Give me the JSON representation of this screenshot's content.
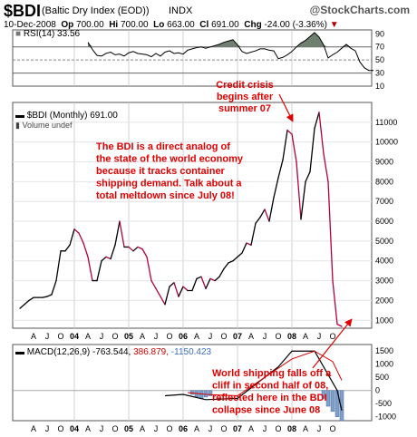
{
  "header": {
    "symbol": "$BDI",
    "name": "(Baltic Dry Index (EOD))",
    "exchange": "INDX",
    "copyright": "@StockCharts.com",
    "date": "10-Dec-2008",
    "open_label": "Op",
    "open": "700.00",
    "high_label": "Hi",
    "high": "700.00",
    "low_label": "Lo",
    "low": "663.00",
    "close_label": "Cl",
    "close": "691.00",
    "change_label": "Chg",
    "change": "-24.00 (-3.36%)",
    "change_marker": "▼"
  },
  "rsi_panel": {
    "legend": "RSI(14) 33.56",
    "ticks": [
      "90",
      "70",
      "50",
      "30",
      "10"
    ]
  },
  "price_panel": {
    "legend": "$BDI (Monthly) 691.00",
    "volume_legend": "Volume undef",
    "ticks": [
      "11000",
      "10000",
      "9000",
      "8000",
      "7000",
      "6000",
      "5000",
      "4000",
      "3000",
      "2000",
      "1000"
    ]
  },
  "macd_panel": {
    "legend_prefix": "MACD(12,26,9)",
    "macd_value": "-763.544,",
    "signal_value": "386.879,",
    "hist_value": "-1150.423",
    "ticks": [
      "1500",
      "1000",
      "500",
      "0",
      "-500",
      "-1000"
    ]
  },
  "x_axis": {
    "labels": [
      "A",
      "J",
      "O",
      "04",
      "A",
      "J",
      "O",
      "05",
      "A",
      "J",
      "O",
      "06",
      "A",
      "J",
      "O",
      "07",
      "A",
      "J",
      "O",
      "08",
      "A",
      "J",
      "O"
    ]
  },
  "annotations": {
    "credit_crisis": [
      "Credit crisis",
      "begins after",
      "summer 07"
    ],
    "analog": [
      "The BDI is a direct analog of",
      "the state of the world economy",
      "because it tracks container",
      "shipping demand. Talk about a",
      "total meltdown since July 08!"
    ],
    "world_shipping": [
      "World shipping falls off a",
      "cliff in second half of 08,",
      "reflected here in the BDI",
      "collapse since June 08"
    ]
  },
  "colors": {
    "up_line": "#000000",
    "down_line": "#b3003c",
    "annotation": "#e00000",
    "rsi_fill": "#708070",
    "macd_hist": "#7f9fc8"
  },
  "chart_data": [
    {
      "type": "line",
      "title": "$BDI (Monthly) 691.00",
      "series": [
        {
          "name": "$BDI (Monthly)",
          "x": [
            "2003-01",
            "2003-02",
            "2003-03",
            "2003-04",
            "2003-05",
            "2003-06",
            "2003-07",
            "2003-08",
            "2003-09",
            "2003-10",
            "2003-11",
            "2003-12",
            "2004-01",
            "2004-02",
            "2004-03",
            "2004-04",
            "2004-05",
            "2004-06",
            "2004-07",
            "2004-08",
            "2004-09",
            "2004-10",
            "2004-11",
            "2004-12",
            "2005-01",
            "2005-02",
            "2005-03",
            "2005-04",
            "2005-05",
            "2005-06",
            "2005-07",
            "2005-08",
            "2005-09",
            "2005-10",
            "2005-11",
            "2005-12",
            "2006-01",
            "2006-02",
            "2006-03",
            "2006-04",
            "2006-05",
            "2006-06",
            "2006-07",
            "2006-08",
            "2006-09",
            "2006-10",
            "2006-11",
            "2006-12",
            "2007-01",
            "2007-02",
            "2007-03",
            "2007-04",
            "2007-05",
            "2007-06",
            "2007-07",
            "2007-08",
            "2007-09",
            "2007-10",
            "2007-11",
            "2007-12",
            "2008-01",
            "2008-02",
            "2008-03",
            "2008-04",
            "2008-05",
            "2008-06",
            "2008-07",
            "2008-08",
            "2008-09",
            "2008-10",
            "2008-11",
            "2008-12"
          ],
          "values": [
            1600,
            1800,
            2000,
            2150,
            2150,
            2150,
            2200,
            2300,
            3000,
            4500,
            4500,
            4800,
            5600,
            5400,
            4900,
            4200,
            3000,
            3000,
            4000,
            4200,
            4100,
            4800,
            6000,
            4700,
            4700,
            4500,
            4700,
            4600,
            4200,
            3000,
            2600,
            2200,
            1800,
            2700,
            2900,
            2200,
            2700,
            2500,
            2500,
            3100,
            3200,
            2600,
            3100,
            3000,
            3200,
            3600,
            3900,
            4000,
            4200,
            4400,
            4900,
            4800,
            5900,
            6200,
            6600,
            6000,
            7200,
            8200,
            9100,
            10600,
            10400,
            9000,
            6100,
            8000,
            8500,
            10700,
            11500,
            9400,
            8000,
            3000,
            800,
            691
          ],
          "direction": [
            "up",
            "up",
            "up",
            "up",
            "down",
            "up",
            "up",
            "up",
            "up",
            "up",
            "down",
            "up",
            "up",
            "down",
            "down",
            "down",
            "down",
            "up",
            "up",
            "up",
            "down",
            "up",
            "up",
            "down",
            "up",
            "down",
            "up",
            "down",
            "down",
            "down",
            "down",
            "down",
            "down",
            "up",
            "up",
            "down",
            "up",
            "down",
            "up",
            "up",
            "up",
            "down",
            "up",
            "down",
            "up",
            "up",
            "up",
            "up",
            "up",
            "up",
            "up",
            "down",
            "up",
            "up",
            "up",
            "down",
            "up",
            "up",
            "up",
            "up",
            "down",
            "down",
            "down",
            "up",
            "up",
            "up",
            "up",
            "down",
            "down",
            "down",
            "down",
            "down"
          ]
        }
      ],
      "ylim": [
        600,
        12000
      ],
      "y_ticks": [
        1000,
        2000,
        3000,
        4000,
        5000,
        6000,
        7000,
        8000,
        9000,
        10000,
        11000
      ]
    },
    {
      "type": "area",
      "title": "RSI(14) 33.56",
      "series": [
        {
          "name": "RSI(14)",
          "x_start": "2004-04",
          "values": [
            77,
            66,
            57,
            56,
            60,
            62,
            58,
            59,
            56,
            61,
            63,
            60,
            59,
            58,
            55,
            60,
            56,
            62,
            64,
            60,
            61,
            59,
            65,
            67,
            69,
            70,
            68,
            70,
            72,
            74,
            77,
            79,
            81,
            73,
            63,
            60,
            62,
            64,
            67,
            67,
            65,
            64,
            52,
            54,
            58,
            63,
            70,
            76,
            80,
            86,
            92,
            85,
            73,
            53,
            58,
            62,
            68,
            74,
            68,
            64,
            47,
            38,
            34,
            34
          ]
        }
      ],
      "ylim": [
        10,
        96
      ],
      "y_ticks": [
        10,
        30,
        50,
        70,
        90
      ]
    },
    {
      "type": "line",
      "title": "MACD(12,26,9)",
      "series": [
        {
          "name": "MACD",
          "x": [
            "2005-09",
            "2006-01",
            "2006-06",
            "2007-01",
            "2007-10",
            "2008-01",
            "2008-06",
            "2008-11",
            "2008-12"
          ],
          "values": [
            -200,
            -150,
            -350,
            -300,
            900,
            1500,
            1500,
            0,
            -763.544
          ]
        },
        {
          "name": "Signal",
          "x": [
            "2006-02",
            "2006-06",
            "2007-01",
            "2008-01",
            "2008-06",
            "2008-10",
            "2008-12"
          ],
          "values": [
            -80,
            -150,
            -200,
            1200,
            1500,
            1100,
            386.879
          ]
        },
        {
          "name": "Histogram",
          "x": [
            "2006-03",
            "2006-04",
            "2006-05",
            "2006-06",
            "2006-07",
            "2008-08",
            "2008-09",
            "2008-10",
            "2008-11",
            "2008-12"
          ],
          "values": [
            -150,
            -250,
            -300,
            -250,
            -200,
            -300,
            -600,
            -800,
            -1000,
            -1150.423
          ]
        }
      ],
      "ylim": [
        -1150,
        1750
      ],
      "y_ticks": [
        -1000,
        -500,
        0,
        500,
        1000,
        1500
      ]
    }
  ]
}
